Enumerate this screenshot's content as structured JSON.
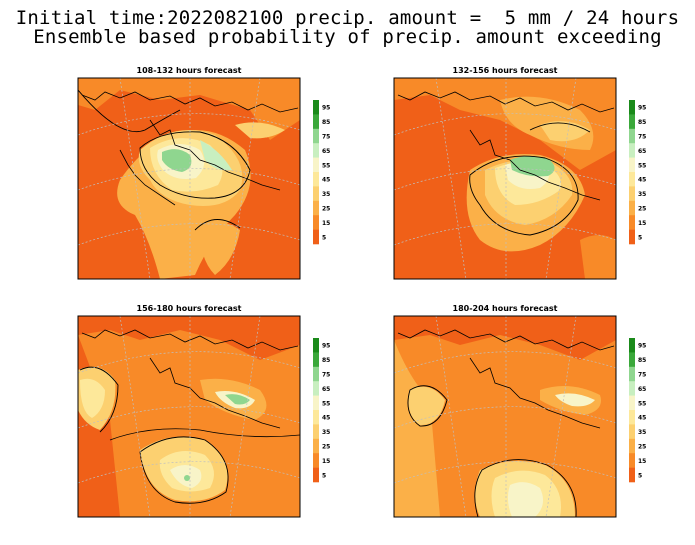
{
  "header": {
    "line1": "Initial time:2022082100 precip. amount =  5 mm / 24 hours",
    "line2": "Ensemble based probability of precip. amount exceeding"
  },
  "panels": [
    {
      "title": "108-132 hours forecast"
    },
    {
      "title": "132-156 hours forecast"
    },
    {
      "title": "156-180 hours forecast"
    },
    {
      "title": "180-204 hours forecast"
    }
  ],
  "colorbar": {
    "labels": [
      "95",
      "85",
      "75",
      "65",
      "55",
      "45",
      "35",
      "25",
      "15",
      "5"
    ],
    "colors": [
      "#1a8a1a",
      "#3aa83a",
      "#8fd68f",
      "#c8efc0",
      "#f8f4c8",
      "#fde89a",
      "#fcd070",
      "#fbb048",
      "#f88a28",
      "#f06018"
    ]
  }
}
